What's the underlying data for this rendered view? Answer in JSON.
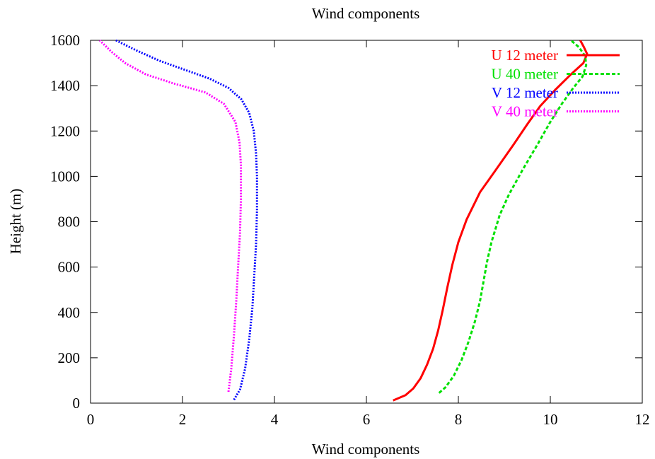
{
  "chart_data": {
    "type": "line",
    "title": "Wind components",
    "xlabel": "Wind components",
    "ylabel": "Height (m)",
    "xlim": [
      0,
      12
    ],
    "ylim": [
      0,
      1600
    ],
    "xticks": [
      "0",
      "2",
      "4",
      "6",
      "8",
      "10",
      "12"
    ],
    "yticks": [
      "0",
      "200",
      "400",
      "600",
      "800",
      "1000",
      "1200",
      "1400",
      "1600"
    ],
    "grid": false,
    "legend_position": "top-right",
    "series": [
      {
        "name": "U 12 meter",
        "color": "#ff0000",
        "style": "solid",
        "points": [
          [
            6.58,
            12
          ],
          [
            6.85,
            35
          ],
          [
            7.02,
            65
          ],
          [
            7.18,
            110
          ],
          [
            7.32,
            170
          ],
          [
            7.45,
            240
          ],
          [
            7.56,
            320
          ],
          [
            7.66,
            410
          ],
          [
            7.76,
            510
          ],
          [
            7.87,
            610
          ],
          [
            8.0,
            710
          ],
          [
            8.18,
            810
          ],
          [
            8.47,
            930
          ],
          [
            8.82,
            1030
          ],
          [
            9.2,
            1140
          ],
          [
            9.5,
            1230
          ],
          [
            9.78,
            1310
          ],
          [
            10.1,
            1380
          ],
          [
            10.45,
            1450
          ],
          [
            10.72,
            1500
          ],
          [
            10.8,
            1540
          ],
          [
            10.73,
            1570
          ],
          [
            10.65,
            1600
          ]
        ]
      },
      {
        "name": "U 40 meter",
        "color": "#00e000",
        "style": "dashed",
        "points": [
          [
            7.58,
            45
          ],
          [
            7.72,
            70
          ],
          [
            7.9,
            120
          ],
          [
            8.07,
            190
          ],
          [
            8.22,
            270
          ],
          [
            8.36,
            360
          ],
          [
            8.47,
            450
          ],
          [
            8.55,
            540
          ],
          [
            8.62,
            620
          ],
          [
            8.72,
            710
          ],
          [
            8.9,
            830
          ],
          [
            9.1,
            920
          ],
          [
            9.4,
            1030
          ],
          [
            9.72,
            1140
          ],
          [
            10.0,
            1240
          ],
          [
            10.25,
            1320
          ],
          [
            10.5,
            1390
          ],
          [
            10.7,
            1440
          ],
          [
            10.78,
            1490
          ],
          [
            10.76,
            1530
          ],
          [
            10.62,
            1570
          ],
          [
            10.45,
            1600
          ]
        ]
      },
      {
        "name": "V 12 meter",
        "color": "#0000ff",
        "style": "dotted",
        "points": [
          [
            3.12,
            15
          ],
          [
            3.25,
            60
          ],
          [
            3.36,
            150
          ],
          [
            3.45,
            280
          ],
          [
            3.52,
            420
          ],
          [
            3.56,
            560
          ],
          [
            3.6,
            700
          ],
          [
            3.62,
            850
          ],
          [
            3.62,
            1000
          ],
          [
            3.6,
            1100
          ],
          [
            3.55,
            1200
          ],
          [
            3.45,
            1280
          ],
          [
            3.28,
            1340
          ],
          [
            3.0,
            1390
          ],
          [
            2.6,
            1430
          ],
          [
            2.05,
            1470
          ],
          [
            1.5,
            1510
          ],
          [
            1.0,
            1555
          ],
          [
            0.55,
            1600
          ]
        ]
      },
      {
        "name": "V 40 meter",
        "color": "#ff00ff",
        "style": "dotted",
        "points": [
          [
            3.0,
            50
          ],
          [
            3.06,
            150
          ],
          [
            3.12,
            300
          ],
          [
            3.17,
            450
          ],
          [
            3.21,
            600
          ],
          [
            3.25,
            750
          ],
          [
            3.27,
            900
          ],
          [
            3.27,
            1050
          ],
          [
            3.24,
            1150
          ],
          [
            3.15,
            1240
          ],
          [
            2.9,
            1320
          ],
          [
            2.5,
            1370
          ],
          [
            1.8,
            1410
          ],
          [
            1.2,
            1450
          ],
          [
            0.75,
            1500
          ],
          [
            0.45,
            1550
          ],
          [
            0.2,
            1600
          ]
        ]
      }
    ]
  }
}
